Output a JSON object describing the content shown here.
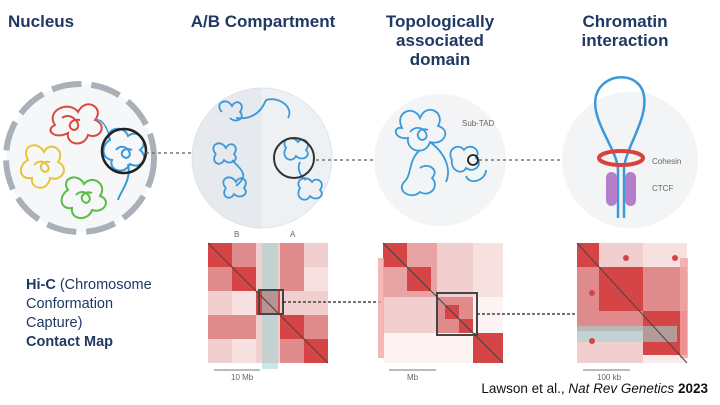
{
  "panels": [
    {
      "title_lines": [
        "Nucleus"
      ]
    },
    {
      "title_lines": [
        "A/B Compartment"
      ]
    },
    {
      "title_lines": [
        "Topologically",
        "associated",
        "domain"
      ]
    },
    {
      "title_lines": [
        "Chromatin",
        "interaction"
      ]
    }
  ],
  "labels": {
    "compartment_b": "B",
    "compartment_a": "A",
    "sub_tad": "Sub-TAD",
    "cohesin": "Cohesin",
    "ctcf": "CTCF",
    "scale_10mb": "10 Mb",
    "scale_mb": "Mb",
    "scale_100kb": "100 kb"
  },
  "side_text": {
    "line1_bold": "Hi-C",
    "line1_rest": " (Chromosome",
    "line2": "Conformation",
    "line3": "Capture)",
    "line4_bold": "Contact Map"
  },
  "citation": {
    "authors": "Lawson et al., ",
    "journal": "Nat Rev Genetics",
    "year": "2023"
  },
  "colors": {
    "title": "#1f3864",
    "chromatin": "#3a9ad9",
    "heat_dark": "#d64545",
    "heat_mid": "#e08b8b",
    "heat_light": "#f2cfcf",
    "cohesin": "#d9433f",
    "ctcf": "#b47fc8",
    "cyan_band": "#9ed3d3"
  }
}
